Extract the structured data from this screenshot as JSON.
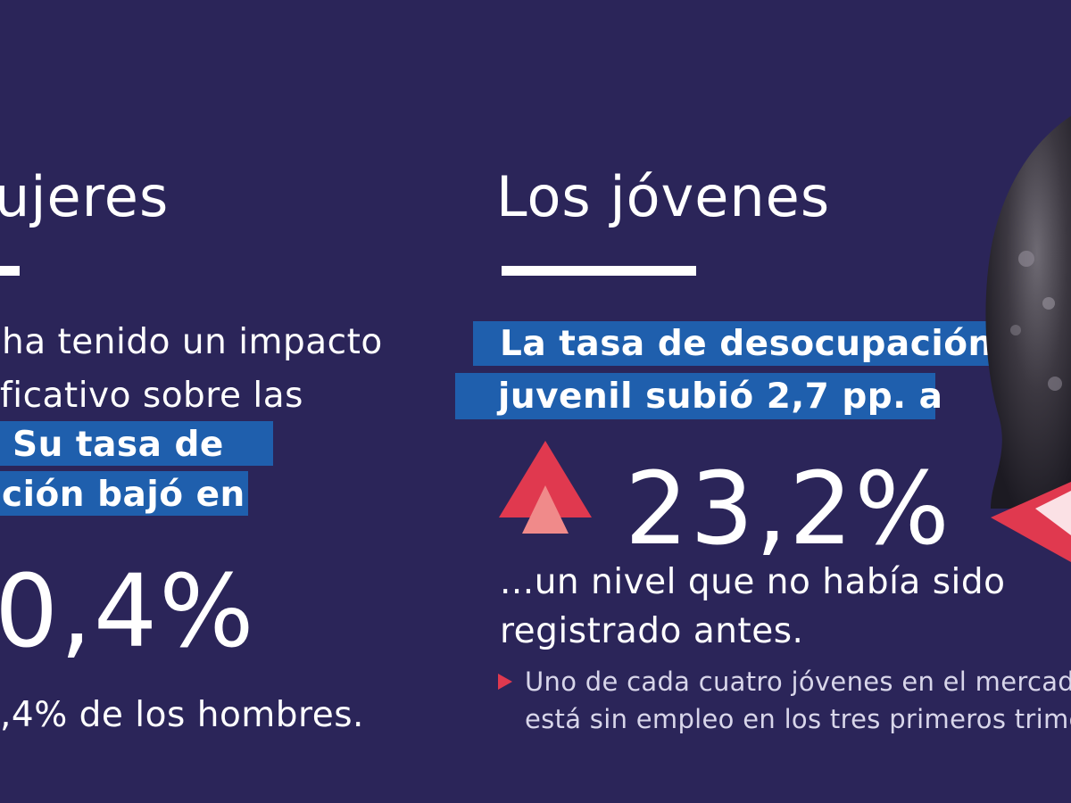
{
  "left": {
    "title": "ujeres",
    "line1": "ha tenido un impacto",
    "line2": "ficativo sobre las",
    "highlight1": "Su tasa de",
    "highlight2": "ción bajó en",
    "big_value": "0,4%",
    "footer": ",4% de los hombres."
  },
  "right": {
    "title": "Los jóvenes",
    "highlight1": "La tasa de desocupación",
    "highlight2": "juvenil subió 2,7 pp. a",
    "big_value": "23,2%",
    "line1": "...un nivel que no había sido",
    "line2": "registrado antes.",
    "note1": "Uno de cada cuatro jóvenes en el mercado",
    "note2": "está sin empleo en los tres primeros trime"
  },
  "icons": {
    "up_arrow": "up-arrow-icon",
    "bullet": "triangle-bullet-icon"
  },
  "colors": {
    "background": "#2b2559",
    "highlight": "#1f5fad",
    "accent_red": "#e0394f",
    "accent_pink": "#f08a8a"
  }
}
